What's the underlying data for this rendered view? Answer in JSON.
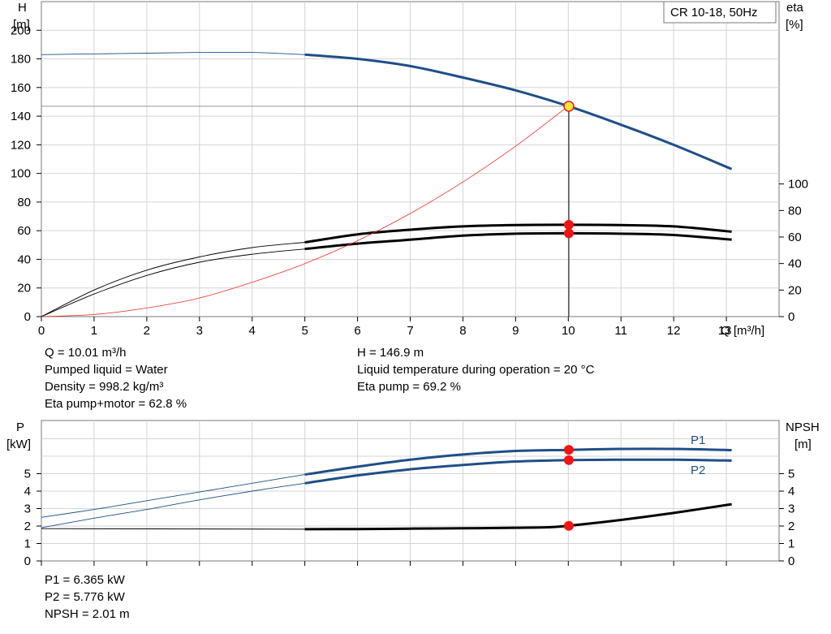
{
  "chart_data": [
    {
      "type": "line",
      "title": "CR 10-18, 50Hz",
      "xlabel": "Q [m³/h]",
      "x_ticks": [
        "0",
        "1",
        "2",
        "3",
        "4",
        "5",
        "6",
        "7",
        "8",
        "9",
        "10",
        "11",
        "12",
        "13"
      ],
      "xlim": [
        0,
        14
      ],
      "y_left_label": [
        "H",
        "[m]"
      ],
      "y_left_ticks": [
        "0",
        "20",
        "40",
        "60",
        "80",
        "100",
        "120",
        "140",
        "160",
        "180",
        "200"
      ],
      "ylim_left": [
        0,
        220
      ],
      "y_right_label": [
        "eta",
        "[%]"
      ],
      "y_right_ticks": [
        "0",
        "20",
        "40",
        "60",
        "80",
        "100"
      ],
      "ylim_right": [
        0,
        100
      ],
      "grid": true,
      "series": [
        {
          "axis": "left",
          "color": "#1f4e87",
          "x": [
            0,
            1,
            2,
            3,
            4,
            5,
            6,
            7,
            8,
            9,
            10,
            11,
            12,
            13.1
          ],
          "y": [
            183,
            183.5,
            184,
            184.5,
            184.5,
            183,
            180,
            175,
            167,
            158,
            147,
            134,
            120,
            103
          ]
        },
        {
          "axis": "right",
          "color": "#000000",
          "x": [
            0,
            1,
            2,
            3,
            4,
            5,
            6,
            7,
            8,
            9,
            10,
            11,
            12,
            13.1
          ],
          "y": [
            0,
            20,
            35,
            45,
            52,
            56,
            62,
            65.5,
            68,
            69,
            69.2,
            69,
            68,
            64
          ]
        },
        {
          "axis": "right",
          "color": "#000000",
          "x": [
            0,
            1,
            2,
            3,
            4,
            5,
            6,
            7,
            8,
            9,
            10,
            11,
            12,
            13.1
          ],
          "y": [
            0,
            17,
            31,
            41,
            47,
            51,
            55,
            58,
            61,
            62.5,
            62.8,
            62.5,
            61.5,
            58
          ]
        },
        {
          "axis": "left",
          "color": "#e8302a",
          "x": [
            0,
            1,
            2,
            3,
            4,
            5,
            6,
            7,
            8,
            9,
            10
          ],
          "y": [
            0,
            1.5,
            6,
            13,
            24,
            37,
            53,
            72,
            94,
            119,
            147
          ]
        }
      ],
      "duty_point": {
        "Q": 10.01,
        "H": 146.9,
        "eta_pump": 69.2,
        "eta_total": 62.8
      }
    },
    {
      "type": "line",
      "xlim": [
        0,
        14
      ],
      "y_left_label": [
        "P",
        "[kW]"
      ],
      "y_left_ticks": [
        "0",
        "1",
        "2",
        "3",
        "4",
        "5"
      ],
      "ylim_left": [
        0,
        8
      ],
      "y_right_label": [
        "NPSH",
        "[m]"
      ],
      "y_right_ticks": [
        "0",
        "1",
        "2",
        "3",
        "4",
        "5"
      ],
      "ylim_right": [
        0,
        8
      ],
      "grid": true,
      "series": [
        {
          "name": "P1",
          "axis": "left",
          "color": "#1f4e87",
          "x": [
            0,
            1,
            2,
            3,
            4,
            5,
            6,
            7,
            8,
            9,
            10,
            11,
            12,
            13.1
          ],
          "y": [
            2.5,
            2.95,
            3.45,
            3.95,
            4.45,
            4.95,
            5.4,
            5.8,
            6.1,
            6.3,
            6.365,
            6.42,
            6.42,
            6.35
          ]
        },
        {
          "name": "P2",
          "axis": "left",
          "color": "#1f4e87",
          "x": [
            0,
            1,
            2,
            3,
            4,
            5,
            6,
            7,
            8,
            9,
            10,
            11,
            12,
            13.1
          ],
          "y": [
            1.9,
            2.45,
            2.95,
            3.5,
            4,
            4.45,
            4.9,
            5.25,
            5.5,
            5.7,
            5.776,
            5.8,
            5.8,
            5.75
          ]
        },
        {
          "axis": "right",
          "color": "#000000",
          "x": [
            0,
            5,
            6,
            7,
            8,
            9,
            9.6,
            10,
            11,
            12,
            13.1
          ],
          "y": [
            1.85,
            1.82,
            1.83,
            1.85,
            1.87,
            1.9,
            1.93,
            2.01,
            2.35,
            2.75,
            3.25
          ]
        }
      ],
      "duty_point": {
        "P1": 6.365,
        "P2": 5.776,
        "NPSH": 2.01
      }
    }
  ],
  "info_top": {
    "left": [
      "Q = 10.01 m³/h",
      "Pumped liquid = Water",
      "Density = 998.2 kg/m³",
      "Eta pump+motor = 62.8 %"
    ],
    "right": [
      "H = 146.9 m",
      "Liquid temperature during operation = 20 °C",
      "Eta pump = 69.2 %"
    ]
  },
  "info_bottom": [
    "P1 = 6.365 kW",
    "P2 = 5.776 kW",
    "NPSH = 2.01 m"
  ]
}
